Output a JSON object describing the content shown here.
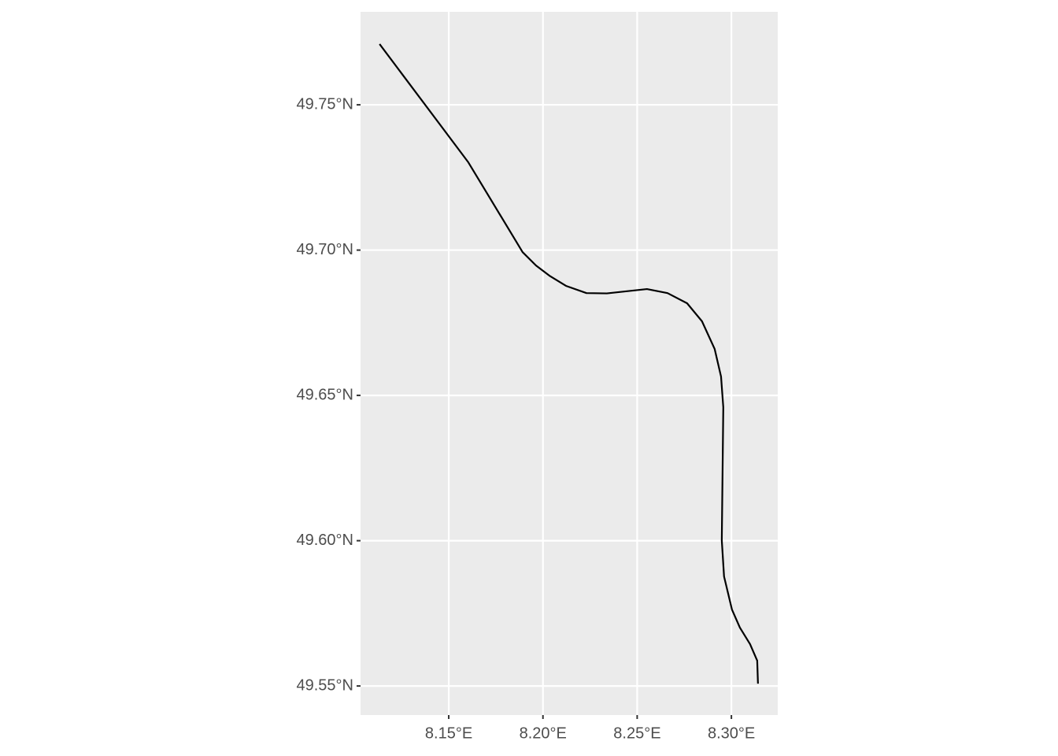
{
  "chart_data": {
    "type": "line",
    "x": [
      8.1133,
      8.1604,
      8.1892,
      8.1963,
      8.2034,
      8.2122,
      8.2231,
      8.2339,
      8.2552,
      8.2661,
      8.2765,
      8.2844,
      8.2911,
      8.2945,
      8.2957,
      8.2949,
      8.2961,
      8.3003,
      8.3045,
      8.3099,
      8.3137,
      8.3141
    ],
    "y": [
      49.7709,
      49.7302,
      49.6993,
      49.6947,
      49.6912,
      49.6877,
      49.6852,
      49.6851,
      49.6866,
      49.6852,
      49.6817,
      49.6755,
      49.666,
      49.6565,
      49.6459,
      49.6001,
      49.5877,
      49.5763,
      49.5701,
      49.5644,
      49.5587,
      49.5508
    ],
    "color": "#000000",
    "xlim": [
      8.1032,
      8.3246
    ],
    "ylim": [
      49.54,
      49.782
    ],
    "xticks": [
      {
        "value": 8.15,
        "label": "8.15°E"
      },
      {
        "value": 8.2,
        "label": "8.20°E"
      },
      {
        "value": 8.25,
        "label": "8.25°E"
      },
      {
        "value": 8.3,
        "label": "8.30°E"
      }
    ],
    "yticks": [
      {
        "value": 49.55,
        "label": "49.55°N"
      },
      {
        "value": 49.6,
        "label": "49.60°N"
      },
      {
        "value": 49.65,
        "label": "49.65°N"
      },
      {
        "value": 49.7,
        "label": "49.70°N"
      },
      {
        "value": 49.75,
        "label": "49.75°N"
      }
    ],
    "grid": true
  }
}
